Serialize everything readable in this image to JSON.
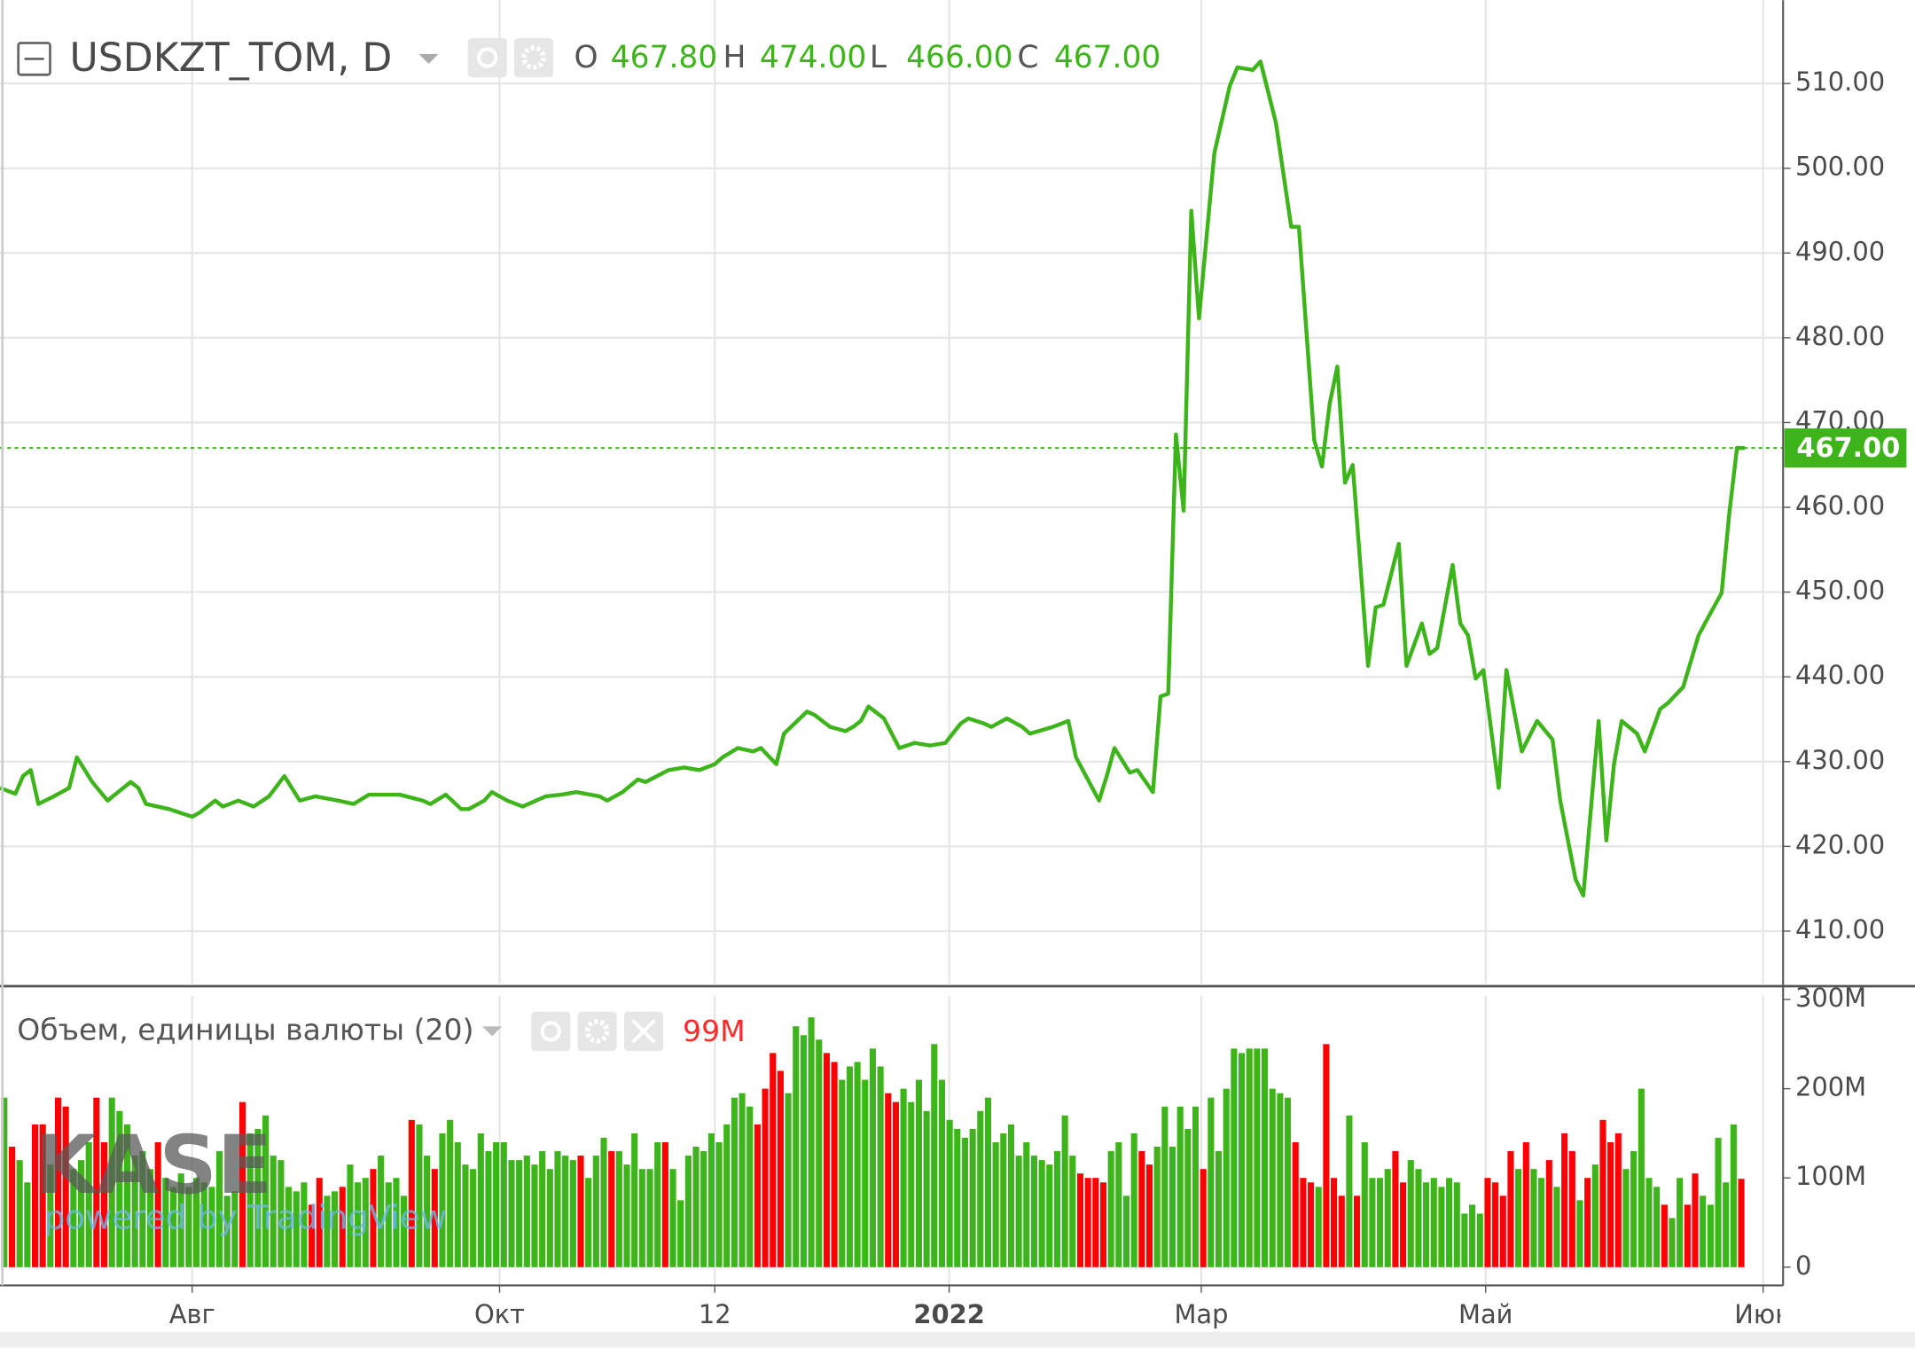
{
  "chart_data": [
    {
      "type": "line",
      "title": "USDKZT_TOM, D",
      "ohlc_labels": [
        "O",
        "H",
        "L",
        "C"
      ],
      "ohlc_values": [
        "467.80",
        "474.00",
        "466.00",
        "467.00"
      ],
      "color": "#3cb41a",
      "x": [
        0,
        2,
        3,
        4,
        5,
        7,
        9,
        10,
        12,
        14,
        17,
        18,
        19,
        22,
        25,
        26,
        28,
        29,
        31,
        33,
        35,
        37,
        39,
        41,
        44,
        46,
        48,
        52,
        55,
        56,
        58,
        60,
        61,
        63,
        64,
        66,
        68,
        71,
        73,
        75,
        78,
        79,
        81,
        83,
        84,
        87,
        89,
        91,
        93,
        94,
        96,
        98,
        99,
        101,
        102,
        105,
        106,
        108,
        110,
        111,
        112,
        113,
        115,
        117,
        119,
        121,
        123,
        125,
        126,
        128,
        129,
        131,
        133,
        134,
        137,
        139,
        140,
        143,
        144,
        145,
        147,
        148,
        150,
        151,
        152,
        153,
        154,
        155,
        156,
        158,
        160,
        161,
        163,
        164,
        165,
        166,
        168,
        169,
        171,
        172,
        173,
        174,
        175,
        176,
        178,
        179,
        180,
        182,
        183,
        185,
        186,
        187,
        189,
        190,
        191,
        192,
        193,
        195,
        196,
        198,
        200,
        202,
        203,
        205,
        206,
        208,
        209,
        210,
        211,
        213,
        214,
        216,
        217,
        219,
        221,
        222,
        224,
        225,
        226,
        227
      ],
      "values": [
        426.9,
        426.2,
        428.3,
        429,
        425,
        425.9,
        426.9,
        430.5,
        427.6,
        425.4,
        427.6,
        426.9,
        425,
        424.4,
        423.5,
        424,
        425.4,
        424.7,
        425.4,
        424.7,
        425.9,
        428.3,
        425.4,
        425.9,
        425.4,
        425,
        426.1,
        426.1,
        425.4,
        425,
        426.1,
        424.4,
        424.4,
        425.4,
        426.4,
        425.4,
        424.7,
        425.9,
        426.1,
        426.4,
        425.9,
        425.4,
        426.4,
        427.9,
        427.6,
        429,
        429.3,
        429,
        429.7,
        430.5,
        431.6,
        431.2,
        431.6,
        429.7,
        433.3,
        435.9,
        435.5,
        434.1,
        433.6,
        434.1,
        434.8,
        436.5,
        435.1,
        431.6,
        432.2,
        431.9,
        432.2,
        434.5,
        435.1,
        434.5,
        434.1,
        435.1,
        434.1,
        433.3,
        434.1,
        434.8,
        430.5,
        425.4,
        428.3,
        431.6,
        428.7,
        429,
        426.4,
        437.7,
        438,
        468.6,
        459.6,
        495,
        482.3,
        501.8,
        509.7,
        511.9,
        511.6,
        512.6,
        509,
        505.4,
        493.1,
        493.1,
        467.9,
        464.8,
        472.2,
        476.6,
        462.9,
        465,
        441.3,
        448.2,
        448.5,
        455.7,
        441.3,
        446.3,
        442.7,
        443.4,
        453.2,
        446.3,
        444.9,
        439.8,
        440.8,
        426.9,
        440.8,
        431.2,
        434.8,
        432.6,
        425.4,
        416.1,
        414.2,
        434.8,
        420.7,
        429.7,
        434.8,
        433.3,
        431.2,
        436.2,
        436.9,
        438.8,
        444.9,
        446.6,
        449.9,
        459.3,
        467,
        467
      ],
      "xlim": [
        0,
        232
      ],
      "xticks": [
        {
          "value": 25,
          "label": "Авг"
        },
        {
          "value": 65,
          "label": "Окт"
        },
        {
          "value": 93,
          "label": "12"
        },
        {
          "value": 123.5,
          "label": "2022"
        },
        {
          "value": 156.3,
          "label": "Мар"
        },
        {
          "value": 193.3,
          "label": "Май"
        },
        {
          "value": 229.4,
          "label": "Июн"
        }
      ],
      "ylim": [
        403.8,
        519.1
      ],
      "yticks": [
        {
          "value": 410,
          "label": "410.00"
        },
        {
          "value": 420,
          "label": "420.00"
        },
        {
          "value": 430,
          "label": "430.00"
        },
        {
          "value": 440,
          "label": "440.00"
        },
        {
          "value": 450,
          "label": "450.00"
        },
        {
          "value": 460,
          "label": "460.00"
        },
        {
          "value": 470,
          "label": "470.00"
        },
        {
          "value": 480,
          "label": "480.00"
        },
        {
          "value": 490,
          "label": "490.00"
        },
        {
          "value": 500,
          "label": "500.00"
        },
        {
          "value": 510,
          "label": "510.00"
        }
      ],
      "grid": true,
      "last_value": {
        "value": 467,
        "label": "467.00"
      }
    },
    {
      "type": "bar",
      "title": "Объем, единицы валюты (20)",
      "last_label": "99M",
      "values": [
        190,
        135,
        120,
        95,
        160,
        160,
        115,
        190,
        180,
        110,
        120,
        140,
        190,
        140,
        190,
        175,
        160,
        125,
        130,
        110,
        140,
        100,
        90,
        105,
        90,
        100,
        95,
        90,
        130,
        80,
        85,
        185,
        150,
        155,
        170,
        125,
        120,
        90,
        85,
        95,
        70,
        100,
        80,
        85,
        90,
        115,
        95,
        100,
        110,
        125,
        95,
        100,
        80,
        165,
        160,
        125,
        110,
        150,
        165,
        140,
        115,
        110,
        150,
        130,
        140,
        140,
        120,
        120,
        125,
        115,
        130,
        110,
        130,
        125,
        120,
        125,
        100,
        125,
        145,
        130,
        130,
        115,
        150,
        110,
        110,
        140,
        140,
        110,
        75,
        125,
        135,
        130,
        150,
        140,
        160,
        190,
        195,
        180,
        160,
        200,
        240,
        220,
        195,
        270,
        260,
        280,
        255,
        240,
        230,
        210,
        225,
        230,
        210,
        245,
        225,
        195,
        185,
        200,
        185,
        210,
        175,
        250,
        210,
        165,
        155,
        145,
        155,
        175,
        190,
        140,
        150,
        160,
        125,
        140,
        125,
        120,
        115,
        130,
        170,
        125,
        105,
        100,
        100,
        95,
        130,
        140,
        80,
        150,
        130,
        115,
        135,
        180,
        135,
        180,
        155,
        180,
        110,
        190,
        130,
        200,
        245,
        240,
        245,
        245,
        245,
        200,
        195,
        190,
        140,
        100,
        95,
        90,
        250,
        100,
        80,
        170,
        80,
        140,
        100,
        100,
        110,
        130,
        95,
        120,
        110,
        95,
        100,
        90,
        100,
        95,
        60,
        70,
        60,
        100,
        95,
        80,
        130,
        110,
        140,
        110,
        100,
        120,
        90,
        150,
        130,
        75,
        100,
        115,
        165,
        140,
        150,
        110,
        130,
        200,
        100,
        90,
        70,
        55,
        100,
        70,
        105,
        80,
        70,
        145,
        95,
        160,
        99
      ],
      "colors": [
        "#3cb41a",
        "#ff0000",
        "#3cb41a",
        "#3cb41a",
        "#ff0000",
        "#ff0000",
        "#3cb41a",
        "#ff0000",
        "#ff0000",
        "#3cb41a",
        "#3cb41a",
        "#3cb41a",
        "#ff0000",
        "#ff0000",
        "#3cb41a",
        "#3cb41a",
        "#3cb41a",
        "#3cb41a",
        "#3cb41a",
        "#3cb41a",
        "#ff0000",
        "#3cb41a",
        "#3cb41a",
        "#3cb41a",
        "#3cb41a",
        "#3cb41a",
        "#3cb41a",
        "#3cb41a",
        "#3cb41a",
        "#3cb41a",
        "#3cb41a",
        "#ff0000",
        "#3cb41a",
        "#3cb41a",
        "#3cb41a",
        "#3cb41a",
        "#3cb41a",
        "#3cb41a",
        "#3cb41a",
        "#3cb41a",
        "#ff0000",
        "#ff0000",
        "#3cb41a",
        "#3cb41a",
        "#ff0000",
        "#3cb41a",
        "#3cb41a",
        "#3cb41a",
        "#ff0000",
        "#3cb41a",
        "#3cb41a",
        "#3cb41a",
        "#3cb41a",
        "#ff0000",
        "#3cb41a",
        "#3cb41a",
        "#ff0000",
        "#3cb41a",
        "#3cb41a",
        "#3cb41a",
        "#3cb41a",
        "#3cb41a",
        "#3cb41a",
        "#3cb41a",
        "#3cb41a",
        "#3cb41a",
        "#3cb41a",
        "#3cb41a",
        "#3cb41a",
        "#3cb41a",
        "#3cb41a",
        "#3cb41a",
        "#3cb41a",
        "#3cb41a",
        "#3cb41a",
        "#ff0000",
        "#3cb41a",
        "#3cb41a",
        "#3cb41a",
        "#ff0000",
        "#3cb41a",
        "#3cb41a",
        "#3cb41a",
        "#3cb41a",
        "#3cb41a",
        "#3cb41a",
        "#ff0000",
        "#3cb41a",
        "#3cb41a",
        "#3cb41a",
        "#3cb41a",
        "#3cb41a",
        "#3cb41a",
        "#3cb41a",
        "#3cb41a",
        "#3cb41a",
        "#3cb41a",
        "#3cb41a",
        "#ff0000",
        "#ff0000",
        "#ff0000",
        "#ff0000",
        "#3cb41a",
        "#3cb41a",
        "#3cb41a",
        "#3cb41a",
        "#3cb41a",
        "#ff0000",
        "#ff0000",
        "#3cb41a",
        "#3cb41a",
        "#3cb41a",
        "#3cb41a",
        "#3cb41a",
        "#3cb41a",
        "#ff0000",
        "#ff0000",
        "#3cb41a",
        "#3cb41a",
        "#3cb41a",
        "#3cb41a",
        "#3cb41a",
        "#3cb41a",
        "#3cb41a",
        "#3cb41a",
        "#3cb41a",
        "#3cb41a",
        "#3cb41a",
        "#3cb41a",
        "#3cb41a",
        "#3cb41a",
        "#3cb41a",
        "#3cb41a",
        "#3cb41a",
        "#3cb41a",
        "#3cb41a",
        "#3cb41a",
        "#3cb41a",
        "#3cb41a",
        "#3cb41a",
        "#ff0000",
        "#ff0000",
        "#ff0000",
        "#ff0000",
        "#3cb41a",
        "#3cb41a",
        "#3cb41a",
        "#3cb41a",
        "#ff0000",
        "#ff0000",
        "#3cb41a",
        "#3cb41a",
        "#3cb41a",
        "#3cb41a",
        "#3cb41a",
        "#3cb41a",
        "#ff0000",
        "#3cb41a",
        "#3cb41a",
        "#3cb41a",
        "#3cb41a",
        "#3cb41a",
        "#3cb41a",
        "#3cb41a",
        "#3cb41a",
        "#3cb41a",
        "#3cb41a",
        "#3cb41a",
        "#ff0000",
        "#ff0000",
        "#ff0000",
        "#3cb41a",
        "#ff0000",
        "#ff0000",
        "#ff0000",
        "#3cb41a",
        "#ff0000",
        "#3cb41a",
        "#3cb41a",
        "#3cb41a",
        "#3cb41a",
        "#ff0000",
        "#ff0000",
        "#3cb41a",
        "#3cb41a",
        "#3cb41a",
        "#3cb41a",
        "#3cb41a",
        "#3cb41a",
        "#3cb41a",
        "#3cb41a",
        "#3cb41a",
        "#3cb41a",
        "#ff0000",
        "#ff0000",
        "#ff0000",
        "#ff0000",
        "#3cb41a",
        "#ff0000",
        "#3cb41a",
        "#3cb41a",
        "#ff0000",
        "#3cb41a",
        "#ff0000",
        "#ff0000",
        "#3cb41a",
        "#ff0000",
        "#3cb41a",
        "#ff0000",
        "#ff0000",
        "#ff0000",
        "#3cb41a",
        "#3cb41a",
        "#3cb41a",
        "#3cb41a",
        "#3cb41a",
        "#ff0000",
        "#3cb41a",
        "#3cb41a",
        "#ff0000",
        "#ff0000",
        "#3cb41a",
        "#3cb41a",
        "#3cb41a",
        "#3cb41a",
        "#3cb41a",
        "#ff0000"
      ],
      "ylim": [
        -20.5,
        304
      ],
      "yticks": [
        0,
        {
          "value": 100,
          "label": "100M"
        },
        {
          "value": 200,
          "label": "200M"
        },
        {
          "value": 300,
          "label": "300M"
        }
      ]
    }
  ],
  "watermark": {
    "logo": "KASE",
    "text": "powered by TradingView"
  }
}
